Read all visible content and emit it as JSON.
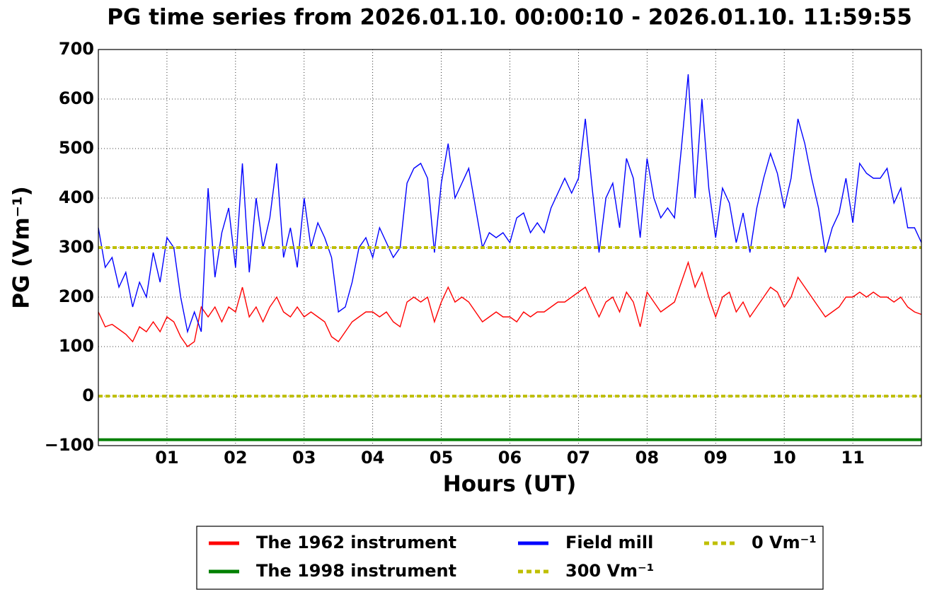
{
  "chart_data": {
    "type": "line",
    "title": "PG time series from 2026.01.10. 00:00:10 - 2026.01.10. 11:59:55",
    "xlabel": "Hours (UT)",
    "ylabel": "PG (Vm⁻¹)",
    "xlim": [
      0,
      12
    ],
    "ylim": [
      -100,
      700
    ],
    "xticks": [
      {
        "value": 1,
        "label": "01"
      },
      {
        "value": 2,
        "label": "02"
      },
      {
        "value": 3,
        "label": "03"
      },
      {
        "value": 4,
        "label": "04"
      },
      {
        "value": 5,
        "label": "05"
      },
      {
        "value": 6,
        "label": "06"
      },
      {
        "value": 7,
        "label": "07"
      },
      {
        "value": 8,
        "label": "08"
      },
      {
        "value": 9,
        "label": "09"
      },
      {
        "value": 10,
        "label": "10"
      },
      {
        "value": 11,
        "label": "11"
      }
    ],
    "yticks": [
      {
        "value": -100,
        "label": "−100"
      },
      0,
      100,
      200,
      300,
      400,
      500,
      600,
      700
    ],
    "grid": true,
    "legend": "lower center",
    "x": [
      0,
      0.1,
      0.2,
      0.3,
      0.4,
      0.5,
      0.6,
      0.7,
      0.8,
      0.9,
      1,
      1.1,
      1.2,
      1.3,
      1.4,
      1.5,
      1.6,
      1.7,
      1.8,
      1.9,
      2,
      2.1,
      2.2,
      2.3,
      2.4,
      2.5,
      2.6,
      2.7,
      2.8,
      2.9,
      3,
      3.1,
      3.2,
      3.3,
      3.4,
      3.5,
      3.6,
      3.7,
      3.8,
      3.9,
      4,
      4.1,
      4.2,
      4.3,
      4.4,
      4.5,
      4.6,
      4.7,
      4.8,
      4.9,
      5,
      5.1,
      5.2,
      5.3,
      5.4,
      5.5,
      5.6,
      5.7,
      5.8,
      5.9,
      6,
      6.1,
      6.2,
      6.3,
      6.4,
      6.5,
      6.6,
      6.7,
      6.8,
      6.9,
      7,
      7.1,
      7.2,
      7.3,
      7.4,
      7.5,
      7.6,
      7.7,
      7.8,
      7.9,
      8,
      8.1,
      8.2,
      8.3,
      8.4,
      8.5,
      8.6,
      8.7,
      8.8,
      8.9,
      9,
      9.1,
      9.2,
      9.3,
      9.4,
      9.5,
      9.6,
      9.7,
      9.8,
      9.9,
      10,
      10.1,
      10.2,
      10.3,
      10.4,
      10.5,
      10.6,
      10.7,
      10.8,
      10.9,
      11,
      11.1,
      11.2,
      11.3,
      11.4,
      11.5,
      11.6,
      11.7,
      11.8,
      11.9,
      12
    ],
    "series": [
      {
        "name": "The 1962 instrument",
        "color": "#ff0000",
        "values": [
          170,
          140,
          145,
          135,
          125,
          110,
          140,
          130,
          150,
          130,
          160,
          150,
          120,
          100,
          110,
          180,
          160,
          180,
          150,
          180,
          170,
          220,
          160,
          180,
          150,
          180,
          200,
          170,
          160,
          180,
          160,
          170,
          160,
          150,
          120,
          110,
          130,
          150,
          160,
          170,
          170,
          160,
          170,
          150,
          140,
          190,
          200,
          190,
          200,
          150,
          190,
          220,
          190,
          200,
          190,
          170,
          150,
          160,
          170,
          160,
          160,
          150,
          170,
          160,
          170,
          170,
          180,
          190,
          190,
          200,
          210,
          220,
          190,
          160,
          190,
          200,
          170,
          210,
          190,
          140,
          210,
          190,
          170,
          180,
          190,
          230,
          270,
          220,
          250,
          200,
          160,
          200,
          210,
          170,
          190,
          160,
          180,
          200,
          220,
          210,
          180,
          200,
          240,
          220,
          200,
          180,
          160,
          170,
          180,
          200,
          200,
          210,
          200,
          210,
          200,
          200,
          190,
          200,
          180,
          170,
          165
        ]
      },
      {
        "name": "The 1998 instrument",
        "color": "#008000",
        "x": [
          0,
          12
        ],
        "values": [
          -88,
          -88
        ]
      },
      {
        "name": "Field mill",
        "color": "#0000ff",
        "values": [
          340,
          260,
          280,
          220,
          250,
          180,
          230,
          200,
          290,
          230,
          320,
          300,
          200,
          130,
          170,
          130,
          420,
          240,
          330,
          380,
          260,
          470,
          250,
          400,
          300,
          360,
          470,
          280,
          340,
          260,
          400,
          300,
          350,
          320,
          280,
          170,
          180,
          230,
          300,
          320,
          280,
          340,
          310,
          280,
          300,
          430,
          460,
          470,
          440,
          290,
          430,
          510,
          400,
          430,
          460,
          380,
          300,
          330,
          320,
          330,
          310,
          360,
          370,
          330,
          350,
          330,
          380,
          410,
          440,
          410,
          440,
          560,
          420,
          290,
          400,
          430,
          340,
          480,
          440,
          320,
          480,
          400,
          360,
          380,
          360,
          500,
          650,
          400,
          600,
          420,
          320,
          420,
          390,
          310,
          370,
          290,
          380,
          440,
          490,
          450,
          380,
          440,
          560,
          510,
          440,
          380,
          290,
          340,
          370,
          440,
          350,
          470,
          450,
          440,
          440,
          460,
          390,
          420,
          340,
          340,
          310
        ]
      },
      {
        "name": "300 Vm⁻¹",
        "color": "#bfbf00",
        "style": "dashed",
        "x": [
          0,
          12
        ],
        "values": [
          300,
          300
        ]
      },
      {
        "name": "0 Vm⁻¹",
        "color": "#bfbf00",
        "style": "dashed",
        "x": [
          0,
          12
        ],
        "values": [
          0,
          0
        ]
      }
    ]
  }
}
